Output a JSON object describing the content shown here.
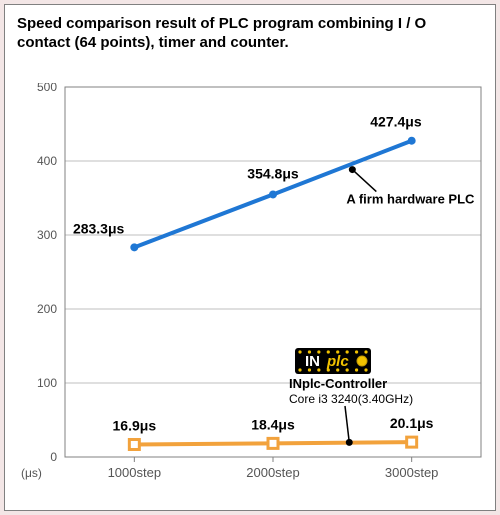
{
  "title": "Speed comparison result of PLC program combining I / O contact (64 points), timer and counter.",
  "chart": {
    "type": "line",
    "background_color": "#ffffff",
    "outer_background_color": "#f3e6e6",
    "panel_border_color": "#808080",
    "plot_border_color": "#808080",
    "grid_color": "#bfbfbf",
    "ylim": [
      0,
      500
    ],
    "ytick_step": 100,
    "yticks": [
      0,
      100,
      200,
      300,
      400,
      500
    ],
    "categories": [
      "1000step",
      "2000step",
      "3000step"
    ],
    "unit_label": "(μs)",
    "axis_fontsize": 12,
    "data_label_fontsize": 14,
    "series": [
      {
        "id": "firm_plc",
        "name": "A firm hardware PLC",
        "values": [
          283.3,
          354.8,
          427.4
        ],
        "value_labels": [
          "283.3μs",
          "354.8μs",
          "427.4μs"
        ],
        "line_color": "#1f77d4",
        "line_width": 4,
        "marker": "circle",
        "marker_size": 8,
        "marker_fill": "#1f77d4"
      },
      {
        "id": "inplc",
        "name": "INplc-Controller",
        "subname": "Core i3 3240(3.40GHz)",
        "values": [
          16.9,
          18.4,
          20.1
        ],
        "value_labels": [
          "16.9μs",
          "18.4μs",
          "20.1μs"
        ],
        "line_color": "#f2a23c",
        "line_width": 4,
        "marker": "square",
        "marker_size": 10,
        "marker_fill": "#ffffff",
        "marker_stroke": "#f2a23c",
        "marker_stroke_width": 3
      }
    ],
    "logo": {
      "text_prefix": "IN",
      "text_accent": "plc",
      "bg_color": "#000000",
      "dot_color": "#f2c200",
      "prefix_color": "#ffffff"
    }
  }
}
